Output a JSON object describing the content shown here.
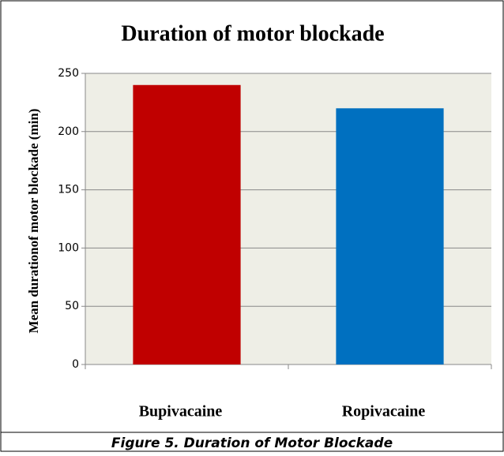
{
  "chart_data": {
    "type": "bar",
    "title": "Duration of motor blockade",
    "y_label": "Mean durationof motor blockade (min)",
    "categories": [
      "Bupivacaine",
      "Ropivacaine"
    ],
    "values": [
      240,
      220
    ],
    "colors": [
      "#c00000",
      "#0070c0"
    ],
    "ylim": [
      0,
      250
    ],
    "yticks": [
      0,
      50,
      100,
      150,
      200,
      250
    ],
    "grid": true
  },
  "caption": "Figure 5. Duration of Motor Blockade"
}
